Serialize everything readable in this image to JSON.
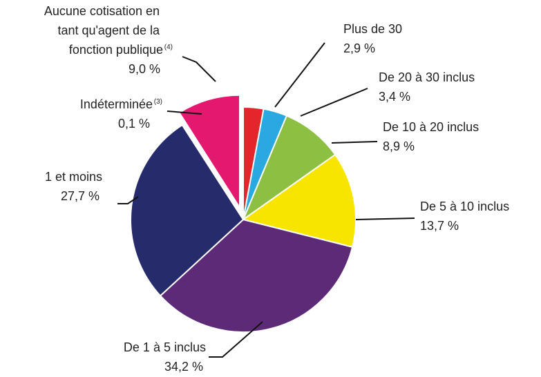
{
  "chart_data": {
    "type": "pie",
    "categories": [
      "Plus de 30",
      "De 20 à 30 inclus",
      "De 10 à 20 inclus",
      "De 5 à 10 inclus",
      "De 1 à 5 inclus",
      "1 et moins",
      "Indéterminée",
      "Aucune cotisation en tant qu'agent de la fonction publique"
    ],
    "footnote_refs": [
      null,
      null,
      null,
      null,
      null,
      null,
      "(3)",
      "(4)"
    ],
    "values": [
      2.9,
      3.4,
      8.9,
      13.7,
      34.2,
      27.7,
      0.1,
      9.0
    ],
    "value_labels": [
      "2,9 %",
      "3,4 %",
      "8,9 %",
      "13,7 %",
      "34,2 %",
      "27,7 %",
      "0,1 %",
      "9,0 %"
    ],
    "colors": [
      "#e3262b",
      "#2aa8e0",
      "#8dbf43",
      "#f7e500",
      "#5d2a78",
      "#262c6b",
      "#bbbbbb",
      "#e3186f"
    ],
    "exploded": [
      false,
      false,
      false,
      false,
      false,
      false,
      false,
      true
    ]
  }
}
